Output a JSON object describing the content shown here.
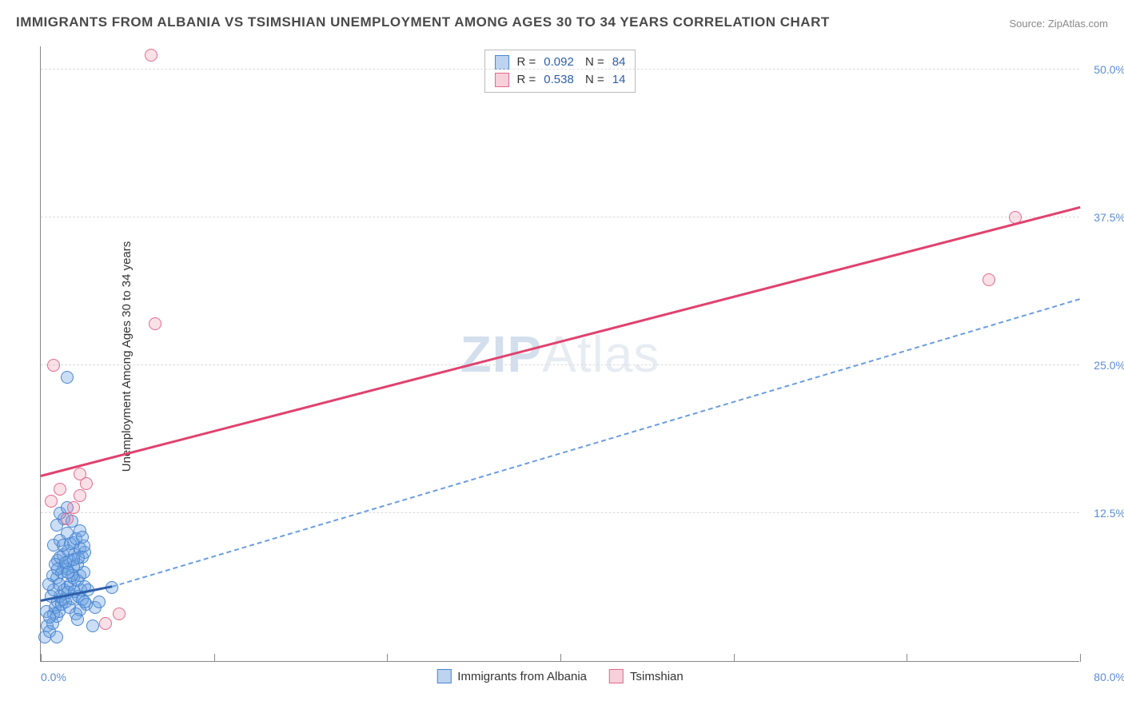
{
  "title": "IMMIGRANTS FROM ALBANIA VS TSIMSHIAN UNEMPLOYMENT AMONG AGES 30 TO 34 YEARS CORRELATION CHART",
  "source": "Source: ZipAtlas.com",
  "ylabel": "Unemployment Among Ages 30 to 34 years",
  "watermark_a": "ZIP",
  "watermark_b": "Atlas",
  "chart": {
    "type": "scatter",
    "xlim": [
      0,
      80
    ],
    "ylim": [
      0,
      52
    ],
    "xticks": [
      0,
      13.33,
      26.67,
      40,
      53.33,
      66.67,
      80
    ],
    "yticks": [
      12.5,
      25.0,
      37.5,
      50.0
    ],
    "ytick_labels": [
      "12.5%",
      "25.0%",
      "37.5%",
      "50.0%"
    ],
    "xlabel_min": "0.0%",
    "xlabel_max": "80.0%",
    "series_a": {
      "name": "Immigrants from Albania",
      "color_fill": "rgba(107,160,225,0.35)",
      "color_stroke": "#4a86d0",
      "R": "0.092",
      "N": "84",
      "trend_solid": {
        "x1": 0,
        "y1": 5.0,
        "x2": 5.5,
        "y2": 6.2
      },
      "trend_dash": {
        "x1": 5.5,
        "y1": 6.2,
        "x2": 80,
        "y2": 30.5
      },
      "points": [
        [
          0.3,
          2.0
        ],
        [
          0.5,
          3.0
        ],
        [
          0.7,
          2.5
        ],
        [
          0.9,
          3.2
        ],
        [
          1.0,
          4.0
        ],
        [
          1.1,
          4.5
        ],
        [
          1.2,
          3.8
        ],
        [
          1.3,
          5.0
        ],
        [
          1.4,
          4.2
        ],
        [
          1.5,
          5.5
        ],
        [
          1.6,
          4.8
        ],
        [
          1.7,
          5.2
        ],
        [
          1.8,
          6.0
        ],
        [
          1.9,
          5.0
        ],
        [
          2.0,
          6.2
        ],
        [
          2.1,
          5.8
        ],
        [
          2.2,
          4.5
        ],
        [
          2.3,
          6.5
        ],
        [
          2.4,
          5.3
        ],
        [
          2.5,
          7.0
        ],
        [
          2.6,
          5.9
        ],
        [
          2.7,
          4.0
        ],
        [
          2.8,
          6.8
        ],
        [
          2.9,
          5.5
        ],
        [
          3.0,
          7.2
        ],
        [
          3.1,
          6.0
        ],
        [
          3.2,
          5.2
        ],
        [
          3.3,
          7.5
        ],
        [
          3.4,
          6.3
        ],
        [
          3.5,
          4.8
        ],
        [
          0.8,
          5.5
        ],
        [
          1.0,
          6.0
        ],
        [
          1.2,
          7.0
        ],
        [
          1.4,
          6.5
        ],
        [
          1.6,
          7.5
        ],
        [
          1.8,
          8.0
        ],
        [
          2.0,
          7.8
        ],
        [
          2.2,
          8.5
        ],
        [
          2.4,
          7.2
        ],
        [
          2.6,
          9.0
        ],
        [
          2.8,
          8.2
        ],
        [
          3.0,
          9.5
        ],
        [
          3.2,
          8.8
        ],
        [
          3.4,
          9.2
        ],
        [
          1.0,
          9.8
        ],
        [
          1.5,
          10.2
        ],
        [
          2.0,
          10.8
        ],
        [
          2.5,
          10.0
        ],
        [
          3.0,
          11.0
        ],
        [
          1.2,
          11.5
        ],
        [
          1.8,
          12.0
        ],
        [
          2.4,
          11.8
        ],
        [
          1.5,
          12.5
        ],
        [
          2.0,
          13.0
        ],
        [
          1.3,
          8.5
        ],
        [
          1.7,
          9.0
        ],
        [
          2.1,
          9.3
        ],
        [
          2.5,
          8.0
        ],
        [
          2.9,
          8.7
        ],
        [
          3.3,
          9.7
        ],
        [
          0.6,
          6.5
        ],
        [
          0.9,
          7.2
        ],
        [
          1.1,
          8.2
        ],
        [
          1.3,
          7.8
        ],
        [
          1.5,
          8.8
        ],
        [
          1.7,
          9.8
        ],
        [
          1.9,
          8.3
        ],
        [
          2.1,
          7.5
        ],
        [
          2.3,
          9.9
        ],
        [
          2.5,
          8.6
        ],
        [
          2.7,
          10.3
        ],
        [
          3.0,
          4.3
        ],
        [
          3.2,
          10.5
        ],
        [
          3.4,
          5.0
        ],
        [
          5.5,
          6.2
        ],
        [
          4.0,
          3.0
        ],
        [
          4.2,
          4.5
        ],
        [
          4.5,
          5.0
        ],
        [
          2.8,
          3.5
        ],
        [
          3.6,
          6.0
        ],
        [
          0.4,
          4.2
        ],
        [
          0.7,
          3.7
        ],
        [
          2.0,
          24.0
        ],
        [
          1.2,
          2.0
        ]
      ]
    },
    "series_b": {
      "name": "Tsimshian",
      "color_fill": "rgba(235,130,160,0.25)",
      "color_stroke": "#e26a8f",
      "R": "0.538",
      "N": "14",
      "trend": {
        "x1": 0,
        "y1": 15.5,
        "x2": 80,
        "y2": 38.2
      },
      "points": [
        [
          0.8,
          13.5
        ],
        [
          1.5,
          14.5
        ],
        [
          2.5,
          13.0
        ],
        [
          3.0,
          14.0
        ],
        [
          3.5,
          15.0
        ],
        [
          1.0,
          25.0
        ],
        [
          8.8,
          28.5
        ],
        [
          8.5,
          51.2
        ],
        [
          5.0,
          3.2
        ],
        [
          6.0,
          4.0
        ],
        [
          3.0,
          15.8
        ],
        [
          75.0,
          37.5
        ],
        [
          73.0,
          32.2
        ],
        [
          2.0,
          12.0
        ]
      ]
    }
  },
  "legend_bottom": {
    "a": "Immigrants from Albania",
    "b": "Tsimshian"
  }
}
